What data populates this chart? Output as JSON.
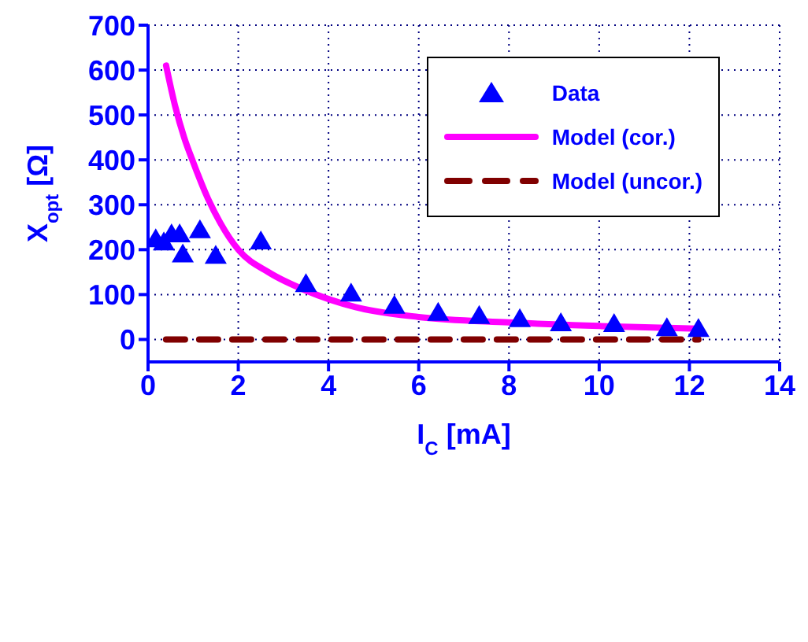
{
  "chart_data": {
    "type": "scatter",
    "xlabel": "I$_{C}$ [mA]",
    "ylabel": "X$_{opt}$ [Ω]",
    "xlim": [
      0,
      14
    ],
    "xticks": [
      0,
      2,
      4,
      6,
      8,
      10,
      12,
      14
    ],
    "ylim": [
      -50,
      700
    ],
    "yticks": [
      0,
      100,
      200,
      300,
      400,
      500,
      600,
      700
    ],
    "grid": true,
    "legend": "top right",
    "series": [
      {
        "name": "Data",
        "type": "scatter",
        "marker": "triangle",
        "color": "#0000ff",
        "x": [
          0.17,
          0.35,
          0.52,
          0.7,
          0.77,
          1.15,
          1.5,
          2.5,
          3.5,
          4.5,
          5.46,
          6.43,
          7.34,
          8.24,
          9.15,
          10.33,
          11.5,
          12.2
        ],
        "values": [
          223,
          216,
          234,
          234,
          189,
          243,
          186,
          218,
          123,
          102,
          75,
          59,
          52,
          45,
          36,
          34,
          25,
          23
        ]
      },
      {
        "name": "Model (cor.)",
        "type": "line",
        "marker": "none",
        "line_style": "solid",
        "color": "#ff00ff",
        "x": [
          0.4,
          0.6,
          0.8,
          1.0,
          1.3,
          1.6,
          2,
          2.7,
          3.5,
          4.6,
          6,
          8,
          10,
          12.2
        ],
        "values": [
          610,
          520,
          450,
          395,
          320,
          260,
          200,
          148,
          109,
          72,
          50,
          38,
          30,
          24
        ]
      },
      {
        "name": "Model (uncor.)",
        "type": "line",
        "marker": "none",
        "line_style": "dashed",
        "color": "#800000",
        "x": [
          0.4,
          12.2
        ],
        "values": [
          0,
          0
        ]
      }
    ]
  }
}
